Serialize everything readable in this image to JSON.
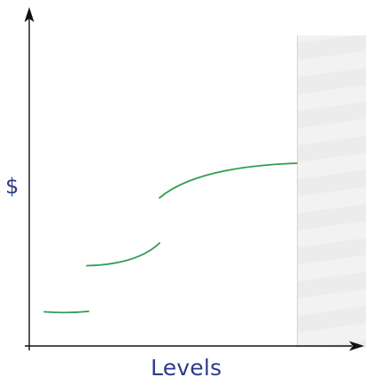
{
  "axes": {
    "y_label": "$",
    "x_label": "Levels"
  },
  "colors": {
    "axis": "#111111",
    "curve": "#2e9e4f",
    "label": "#2e3a8c",
    "hatched_region": "#e9e9e9",
    "hatched_stripe": "#f3f3f3"
  }
}
